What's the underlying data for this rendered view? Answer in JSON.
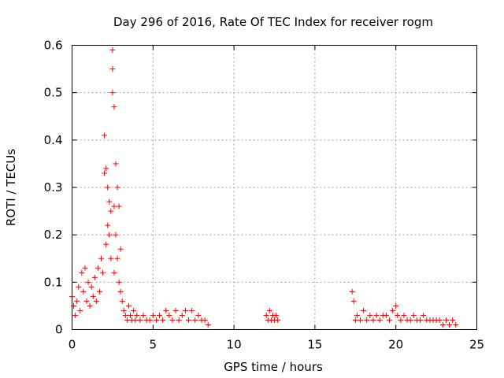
{
  "chart_data": {
    "type": "scatter",
    "title": "Day 296 of 2016, Rate Of TEC Index for receiver rogm",
    "xlabel": "GPS time / hours",
    "ylabel": "ROTI / TECUs",
    "xlim": [
      0,
      25
    ],
    "ylim": [
      0,
      0.6
    ],
    "xticks": [
      "0",
      "5",
      "10",
      "15",
      "20",
      "25"
    ],
    "yticks": [
      "0",
      "0.1",
      "0.2",
      "0.3",
      "0.4",
      "0.5",
      "0.6"
    ],
    "grid": true,
    "marker": "+",
    "color": "#ff0000",
    "series": [
      {
        "name": "ROTI",
        "x": [
          0.0,
          0.1,
          0.2,
          0.3,
          0.4,
          0.5,
          0.6,
          0.7,
          0.8,
          0.9,
          1.0,
          1.1,
          1.2,
          1.3,
          1.4,
          1.5,
          1.6,
          1.7,
          1.8,
          1.9,
          2.0,
          2.0,
          2.1,
          2.1,
          2.2,
          2.2,
          2.3,
          2.3,
          2.4,
          2.4,
          2.5,
          2.5,
          2.5,
          2.6,
          2.6,
          2.6,
          2.7,
          2.7,
          2.8,
          2.8,
          2.9,
          2.9,
          3.0,
          3.0,
          3.1,
          3.2,
          3.3,
          3.4,
          3.5,
          3.6,
          3.7,
          3.8,
          3.9,
          4.0,
          4.2,
          4.4,
          4.6,
          4.8,
          5.0,
          5.2,
          5.4,
          5.6,
          5.8,
          6.0,
          6.2,
          6.4,
          6.6,
          6.8,
          7.0,
          7.2,
          7.4,
          7.6,
          7.8,
          8.0,
          8.2,
          8.4,
          12.0,
          12.1,
          12.2,
          12.3,
          12.4,
          12.5,
          12.6,
          12.7,
          17.3,
          17.4,
          17.5,
          17.6,
          17.8,
          18.0,
          18.2,
          18.4,
          18.6,
          18.8,
          19.0,
          19.2,
          19.4,
          19.6,
          19.8,
          20.0,
          20.1,
          20.3,
          20.5,
          20.7,
          20.9,
          21.1,
          21.3,
          21.5,
          21.7,
          21.9,
          22.1,
          22.3,
          22.5,
          22.7,
          22.9,
          23.1,
          23.3,
          23.5,
          23.7
        ],
        "y": [
          0.07,
          0.05,
          0.03,
          0.06,
          0.09,
          0.04,
          0.12,
          0.08,
          0.13,
          0.06,
          0.1,
          0.05,
          0.09,
          0.07,
          0.11,
          0.06,
          0.13,
          0.08,
          0.15,
          0.12,
          0.41,
          0.33,
          0.34,
          0.18,
          0.3,
          0.22,
          0.27,
          0.2,
          0.25,
          0.15,
          0.59,
          0.55,
          0.5,
          0.47,
          0.26,
          0.12,
          0.35,
          0.2,
          0.3,
          0.15,
          0.26,
          0.1,
          0.17,
          0.08,
          0.06,
          0.04,
          0.03,
          0.02,
          0.05,
          0.03,
          0.02,
          0.04,
          0.02,
          0.03,
          0.02,
          0.03,
          0.02,
          0.02,
          0.03,
          0.02,
          0.03,
          0.02,
          0.04,
          0.03,
          0.02,
          0.04,
          0.02,
          0.03,
          0.04,
          0.02,
          0.04,
          0.02,
          0.03,
          0.02,
          0.02,
          0.01,
          0.03,
          0.02,
          0.04,
          0.02,
          0.03,
          0.02,
          0.03,
          0.02,
          0.08,
          0.06,
          0.02,
          0.03,
          0.02,
          0.04,
          0.02,
          0.03,
          0.02,
          0.03,
          0.02,
          0.03,
          0.03,
          0.02,
          0.04,
          0.05,
          0.03,
          0.02,
          0.03,
          0.02,
          0.02,
          0.03,
          0.02,
          0.02,
          0.03,
          0.02,
          0.02,
          0.02,
          0.02,
          0.02,
          0.01,
          0.02,
          0.01,
          0.02,
          0.01
        ]
      }
    ]
  }
}
